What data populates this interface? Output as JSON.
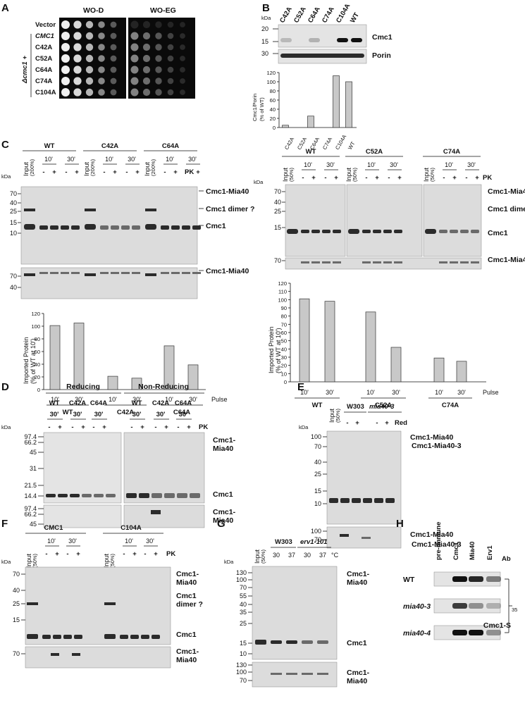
{
  "panel_letters": [
    "A",
    "B",
    "C",
    "D",
    "E",
    "F",
    "G",
    "H"
  ],
  "panelA": {
    "col_titles": [
      "WO-D",
      "WO-EG"
    ],
    "strain": "Δcmc1 +",
    "rows": [
      "Vector",
      "CMC1",
      "C42A",
      "C52A",
      "C64A",
      "C74A",
      "C104A"
    ]
  },
  "panelB": {
    "kda_label": "kDa",
    "mw_marks": [
      "20",
      "15",
      "30"
    ],
    "lanes": [
      "C42A",
      "C52A",
      "C64A",
      "C74A",
      "C104A",
      "WT"
    ],
    "blot_labels": [
      "Cmc1",
      "Porin"
    ],
    "chart_data": {
      "type": "bar",
      "categories": [
        "C42A",
        "C52A",
        "C64A",
        "C74A",
        "C104A",
        "WT"
      ],
      "values": [
        5,
        0,
        25,
        0,
        113,
        100
      ],
      "ylabel": "Cmc1/Porin (% of WT)",
      "ylim": [
        0,
        120
      ],
      "yticks": [
        "0",
        "20",
        "40",
        "60",
        "80",
        "100",
        "120"
      ]
    }
  },
  "panelC_left": {
    "groups": [
      "WT",
      "C42A",
      "C64A"
    ],
    "input_label": "Input",
    "input_pct": "(200%)",
    "time_labels": [
      "10'",
      "30'"
    ],
    "pk_signs": [
      "-",
      "+"
    ],
    "pk_label": "PK",
    "kda_label": "kDa",
    "mw_marks": [
      "70",
      "40",
      "25",
      "15",
      "10",
      "70",
      "40"
    ],
    "band_labels": [
      "Cmc1-Mia40",
      "Cmc1 dimer ?",
      "Cmc1",
      "Cmc1-Mia40"
    ],
    "chart_data": {
      "type": "bar",
      "categories": [
        "WT 10'",
        "WT 30'",
        "C42A 10'",
        "C42A 30'",
        "C64A 10'",
        "C64A 30'"
      ],
      "values": [
        101,
        105,
        21,
        18,
        69,
        39
      ],
      "ylabel": "Imported Protein (% of WT at 10')",
      "ylim": [
        0,
        120
      ],
      "yticks": [
        "0",
        "20",
        "40",
        "60",
        "80",
        "100",
        "120"
      ],
      "x_tick_labels": [
        "10'",
        "30'",
        "10'",
        "30'",
        "10'",
        "30'"
      ],
      "group_labels": [
        "WT",
        "C42A",
        "C64A"
      ],
      "pulse_label": "Pulse"
    }
  },
  "panelC_right": {
    "groups": [
      "WT",
      "C52A",
      "C74A"
    ],
    "input_label": "Input",
    "input_pct": "(50%)",
    "time_labels": [
      "10'",
      "30'"
    ],
    "pk_signs": [
      "-",
      "+"
    ],
    "pk_label": "PK",
    "kda_label": "kDa",
    "mw_marks": [
      "70",
      "40",
      "25",
      "15",
      "70"
    ],
    "band_labels": [
      "Cmc1-Mia40",
      "Cmc1 dimer ?",
      "Cmc1",
      "Cmc1-Mia40"
    ],
    "chart_data": {
      "type": "bar",
      "categories": [
        "WT 10'",
        "WT 30'",
        "C52A 10'",
        "C52A 30'",
        "C74A 10'",
        "C74A 30'"
      ],
      "values": [
        101,
        98,
        85,
        42,
        29,
        25
      ],
      "ylabel": "Imported Protein (% of WT at 10')",
      "ylim": [
        0,
        120
      ],
      "yticks": [
        "0",
        "10",
        "20",
        "30",
        "40",
        "50",
        "60",
        "70",
        "80",
        "90",
        "100",
        "110",
        "120"
      ],
      "x_tick_labels": [
        "10'",
        "30'",
        "10'",
        "30'",
        "10'",
        "30'"
      ],
      "group_labels": [
        "WT",
        "C52A",
        "C74A"
      ],
      "pulse_label": "Pulse"
    }
  },
  "panelD": {
    "conditions": [
      "Reducing",
      "Non-Reducing"
    ],
    "groups": [
      "WT",
      "C42A",
      "C64A",
      "WT",
      "C42A",
      "C64A"
    ],
    "time": "30'",
    "pk_label": "PK",
    "kda_label": "kDa",
    "mw_marks": [
      "97.4",
      "66.2",
      "45",
      "31",
      "21.5",
      "14.4",
      "97.4",
      "66.2",
      "45"
    ],
    "band_labels": [
      "Cmc1-",
      "Mia40",
      "Cmc1",
      "Cmc1-",
      "Mia40"
    ]
  },
  "panelE": {
    "input_label": "Input",
    "input_pct": "(50%)",
    "strains": [
      "W303",
      "mia40-3"
    ],
    "red_label": "Red",
    "kda_label": "kDa",
    "mw_marks": [
      "100",
      "70",
      "40",
      "25",
      "15",
      "10",
      "100",
      "70"
    ],
    "band_labels": [
      "Cmc1-Mia40",
      "Cmc1-Mia40-3",
      "Cmc1-Mia40",
      "Cmc1-Mia40-3"
    ]
  },
  "panelF": {
    "groups": [
      "CMC1",
      "C104A"
    ],
    "input_label": "Input",
    "input_pct": "(50%)",
    "time_labels": [
      "10'",
      "30'"
    ],
    "pk_label": "PK",
    "kda_label": "kDa",
    "mw_marks": [
      "70",
      "40",
      "25",
      "15",
      "70"
    ],
    "band_labels": [
      "Cmc1-",
      "Mia40",
      "Cmc1",
      "dimer ?",
      "Cmc1",
      "Cmc1-",
      "Mia40"
    ]
  },
  "panelG": {
    "input_label": "Input",
    "input_pct": "(50%)",
    "strains": [
      "W303",
      "erv1-101"
    ],
    "temps": [
      "30",
      "37",
      "30",
      "37"
    ],
    "temp_unit": "°C",
    "kda_label": "kDa",
    "mw_marks": [
      "130",
      "100",
      "70",
      "55",
      "40",
      "35",
      "25",
      "15",
      "10",
      "130",
      "100",
      "70"
    ],
    "band_labels": [
      "Cmc1-",
      "Mia40",
      "Cmc1",
      "Cmc1-",
      "Mia40"
    ]
  },
  "panelH": {
    "ab_label": "Ab",
    "lanes": [
      "pre-immune",
      "Cmc1",
      "Mia40",
      "Erv1"
    ],
    "rows": [
      "WT",
      "mia40-3",
      "mia40-4"
    ],
    "result_label": "Cmc1-S",
    "superscript": "35"
  }
}
